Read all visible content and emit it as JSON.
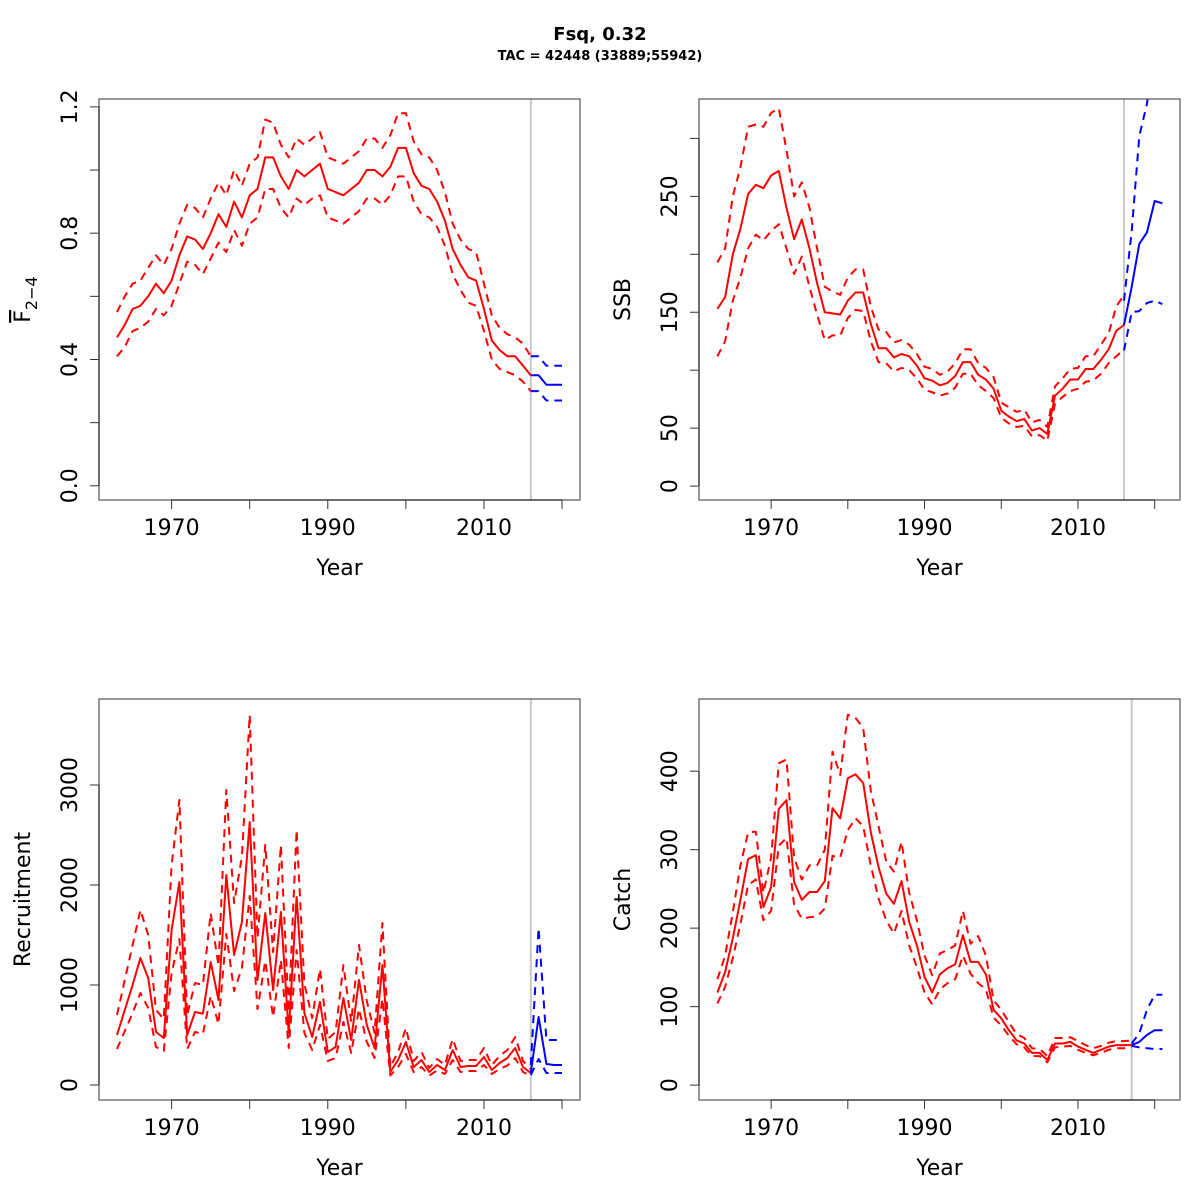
{
  "title": "Fsq, 0.32",
  "subtitle": "TAC = 42448 (33889;55942)",
  "colors": {
    "historic": "#ff0000",
    "projection": "#0000ff",
    "divider": "#c8c8c8",
    "frame": "#555555"
  },
  "chart_data": [
    {
      "type": "line",
      "panel": "top-left",
      "xlabel": "Year",
      "ylabel": "F",
      "ylabel_subscript": "2−4",
      "xlim": [
        1960.7,
        2022.3
      ],
      "ylim": [
        -0.045,
        1.225
      ],
      "xticks": [
        1970,
        1980,
        1990,
        2000,
        2010,
        2020
      ],
      "xtick_labels": [
        "1970",
        "1990",
        "2010"
      ],
      "yticks": [
        0,
        0.2,
        0.4,
        0.6,
        0.8,
        1.0,
        1.2
      ],
      "ytick_labels": [
        "0.0",
        "0.4",
        "0.8",
        "1.2"
      ],
      "divider_year": 2016,
      "historic": {
        "start_year": 1963,
        "mean": [
          0.47,
          0.51,
          0.56,
          0.57,
          0.6,
          0.64,
          0.61,
          0.65,
          0.73,
          0.79,
          0.78,
          0.75,
          0.8,
          0.86,
          0.82,
          0.9,
          0.85,
          0.92,
          0.94,
          1.04,
          1.04,
          0.98,
          0.94,
          1.0,
          0.98,
          1.0,
          1.02,
          0.94,
          0.93,
          0.92,
          0.94,
          0.96,
          1.0,
          1.0,
          0.98,
          1.01,
          1.07,
          1.07,
          0.99,
          0.95,
          0.94,
          0.9,
          0.84,
          0.75,
          0.7,
          0.66,
          0.65,
          0.56,
          0.46,
          0.43,
          0.41,
          0.41,
          0.38,
          0.35
        ],
        "upper": [
          0.55,
          0.6,
          0.64,
          0.65,
          0.69,
          0.73,
          0.7,
          0.75,
          0.83,
          0.89,
          0.88,
          0.85,
          0.91,
          0.96,
          0.92,
          1.0,
          0.95,
          1.02,
          1.04,
          1.16,
          1.15,
          1.08,
          1.04,
          1.1,
          1.08,
          1.1,
          1.12,
          1.04,
          1.03,
          1.02,
          1.04,
          1.06,
          1.1,
          1.1,
          1.07,
          1.11,
          1.18,
          1.18,
          1.09,
          1.05,
          1.04,
          1.0,
          0.93,
          0.83,
          0.78,
          0.75,
          0.74,
          0.64,
          0.54,
          0.5,
          0.48,
          0.47,
          0.45,
          0.41
        ],
        "lower": [
          0.41,
          0.44,
          0.49,
          0.5,
          0.52,
          0.56,
          0.54,
          0.57,
          0.64,
          0.71,
          0.7,
          0.67,
          0.72,
          0.77,
          0.74,
          0.81,
          0.76,
          0.83,
          0.85,
          0.94,
          0.94,
          0.88,
          0.85,
          0.91,
          0.89,
          0.91,
          0.92,
          0.85,
          0.84,
          0.83,
          0.85,
          0.87,
          0.91,
          0.91,
          0.89,
          0.92,
          0.98,
          0.98,
          0.9,
          0.86,
          0.85,
          0.82,
          0.76,
          0.67,
          0.62,
          0.58,
          0.57,
          0.49,
          0.4,
          0.37,
          0.36,
          0.35,
          0.33,
          0.3
        ]
      },
      "projection": {
        "start_year": 2016,
        "mean": [
          0.35,
          0.35,
          0.32,
          0.32,
          0.32
        ],
        "upper": [
          0.41,
          0.41,
          0.38,
          0.38,
          0.38
        ],
        "lower": [
          0.3,
          0.3,
          0.27,
          0.27,
          0.27
        ]
      }
    },
    {
      "type": "line",
      "panel": "top-right",
      "xlabel": "Year",
      "ylabel": "SSB",
      "xlim": [
        1960.6,
        2023.3
      ],
      "ylim": [
        -12,
        334
      ],
      "xticks": [
        1970,
        1980,
        1990,
        2000,
        2010,
        2020
      ],
      "xtick_labels": [
        "1970",
        "1990",
        "2010"
      ],
      "yticks": [
        0,
        50,
        100,
        150,
        200,
        250,
        300
      ],
      "ytick_labels": [
        "0",
        "50",
        "150",
        "250"
      ],
      "divider_year": 2016,
      "historic": {
        "start_year": 1963,
        "mean": [
          153,
          163,
          200,
          222,
          252,
          260,
          257,
          268,
          272,
          240,
          213,
          230,
          205,
          175,
          150,
          149,
          148,
          160,
          167,
          167,
          140,
          119,
          119,
          111,
          114,
          112,
          104,
          93,
          91,
          87,
          89,
          95,
          107,
          107,
          96,
          92,
          84,
          65,
          60,
          56,
          58,
          48,
          50,
          45,
          78,
          84,
          92,
          92,
          101,
          101,
          109,
          118,
          134,
          139
        ],
        "upper": [
          193,
          205,
          250,
          275,
          310,
          312,
          310,
          322,
          326,
          290,
          250,
          262,
          240,
          205,
          172,
          168,
          165,
          180,
          187,
          187,
          155,
          135,
          133,
          124,
          126,
          122,
          114,
          103,
          101,
          96,
          99,
          106,
          118,
          118,
          106,
          102,
          94,
          72,
          68,
          64,
          66,
          55,
          57,
          51,
          86,
          93,
          101,
          102,
          112,
          112,
          122,
          132,
          155,
          165
        ],
        "lower": [
          112,
          125,
          160,
          180,
          205,
          217,
          212,
          220,
          226,
          205,
          183,
          198,
          172,
          148,
          126,
          130,
          130,
          145,
          152,
          151,
          125,
          107,
          106,
          99,
          102,
          100,
          93,
          83,
          81,
          78,
          80,
          85,
          97,
          97,
          87,
          82,
          76,
          59,
          54,
          51,
          52,
          43,
          44,
          39,
          71,
          77,
          82,
          84,
          90,
          91,
          97,
          106,
          112,
          118
        ]
      },
      "projection": {
        "start_year": 2016,
        "mean": [
          139,
          172,
          209,
          219,
          246,
          244
        ],
        "upper": [
          160,
          220,
          302,
          330,
          380,
          400
        ],
        "lower": [
          117,
          150,
          151,
          158,
          160,
          157
        ]
      }
    },
    {
      "type": "line",
      "panel": "bottom-left",
      "xlabel": "Year",
      "ylabel": "Recruitment",
      "xlim": [
        1960.7,
        2022.3
      ],
      "ylim": [
        -150,
        3860
      ],
      "xticks": [
        1970,
        1980,
        1990,
        2000,
        2010,
        2020
      ],
      "xtick_labels": [
        "1970",
        "1990",
        "2010"
      ],
      "yticks": [
        0,
        1000,
        2000,
        3000
      ],
      "ytick_labels": [
        "0",
        "1000",
        "2000",
        "3000"
      ],
      "divider_year": 2016,
      "historic": {
        "start_year": 1963,
        "mean": [
          500,
          750,
          1000,
          1270,
          1070,
          530,
          470,
          1550,
          2030,
          500,
          730,
          713,
          1230,
          850,
          2100,
          1300,
          1630,
          2630,
          1050,
          1720,
          950,
          1730,
          520,
          1880,
          720,
          480,
          830,
          330,
          380,
          870,
          450,
          1050,
          600,
          370,
          1200,
          130,
          250,
          430,
          180,
          250,
          130,
          200,
          150,
          350,
          180,
          190,
          190,
          280,
          150,
          220,
          270,
          370,
          180,
          120
        ],
        "upper": [
          700,
          1050,
          1400,
          1750,
          1500,
          750,
          660,
          2200,
          2850,
          700,
          1020,
          1000,
          1720,
          1190,
          2950,
          1820,
          2280,
          3700,
          1470,
          2400,
          1330,
          2400,
          730,
          2550,
          1010,
          670,
          1160,
          460,
          530,
          1200,
          630,
          1400,
          840,
          520,
          1620,
          180,
          330,
          570,
          240,
          330,
          170,
          260,
          200,
          460,
          240,
          250,
          250,
          370,
          200,
          290,
          350,
          480,
          240,
          160
        ],
        "lower": [
          360,
          540,
          720,
          920,
          770,
          380,
          340,
          1120,
          1460,
          360,
          530,
          510,
          890,
          610,
          1510,
          940,
          1170,
          1890,
          760,
          1240,
          680,
          1250,
          370,
          1350,
          520,
          350,
          600,
          240,
          270,
          630,
          320,
          760,
          430,
          270,
          860,
          95,
          180,
          310,
          130,
          180,
          95,
          145,
          110,
          250,
          130,
          140,
          140,
          200,
          110,
          160,
          195,
          270,
          130,
          90
        ]
      },
      "projection": {
        "start_year": 2016,
        "mean": [
          120,
          680,
          210,
          200,
          200
        ],
        "upper": [
          200,
          1570,
          450,
          450,
          450
        ],
        "lower": [
          100,
          260,
          120,
          120,
          120
        ]
      }
    },
    {
      "type": "line",
      "panel": "bottom-right",
      "xlabel": "Year",
      "ylabel": "Catch",
      "xlim": [
        1960.6,
        2023.3
      ],
      "ylim": [
        -19,
        492
      ],
      "xticks": [
        1970,
        1980,
        1990,
        2000,
        2010,
        2020
      ],
      "xtick_labels": [
        "1970",
        "1990",
        "2010"
      ],
      "yticks": [
        0,
        100,
        200,
        300,
        400
      ],
      "ytick_labels": [
        "0",
        "100",
        "200",
        "300",
        "400"
      ],
      "divider_year": 2017,
      "historic": {
        "start_year": 1963,
        "mean": [
          118,
          144,
          187,
          236,
          288,
          293,
          227,
          252,
          352,
          363,
          259,
          236,
          246,
          246,
          260,
          353,
          340,
          391,
          396,
          385,
          322,
          278,
          244,
          231,
          260,
          208,
          178,
          138,
          118,
          141,
          149,
          154,
          191,
          157,
          157,
          141,
          96,
          85,
          70,
          57,
          53,
          41,
          41,
          32,
          53,
          53,
          55,
          49,
          45,
          41,
          45,
          49,
          51,
          51,
          51
        ],
        "upper": [
          135,
          165,
          220,
          280,
          322,
          323,
          245,
          290,
          410,
          415,
          290,
          262,
          280,
          280,
          300,
          425,
          395,
          472,
          468,
          455,
          375,
          330,
          285,
          272,
          310,
          245,
          210,
          165,
          140,
          168,
          172,
          178,
          222,
          180,
          190,
          165,
          108,
          96,
          80,
          65,
          60,
          47,
          46,
          37,
          60,
          60,
          61,
          56,
          51,
          47,
          50,
          54,
          56,
          56,
          57
        ],
        "lower": [
          104,
          125,
          162,
          205,
          255,
          262,
          210,
          222,
          305,
          315,
          230,
          212,
          214,
          215,
          225,
          292,
          290,
          325,
          340,
          330,
          280,
          238,
          210,
          193,
          222,
          178,
          150,
          118,
          103,
          122,
          130,
          135,
          165,
          142,
          130,
          122,
          86,
          76,
          63,
          52,
          48,
          37,
          37,
          29,
          48,
          49,
          50,
          45,
          41,
          38,
          41,
          45,
          47,
          47,
          48
        ]
      },
      "projection": {
        "start_year": 2017,
        "mean": [
          51,
          55,
          64,
          70,
          70
        ],
        "upper": [
          53,
          66,
          96,
          115,
          115
        ],
        "lower": [
          50,
          48,
          47,
          46,
          46
        ]
      }
    }
  ]
}
